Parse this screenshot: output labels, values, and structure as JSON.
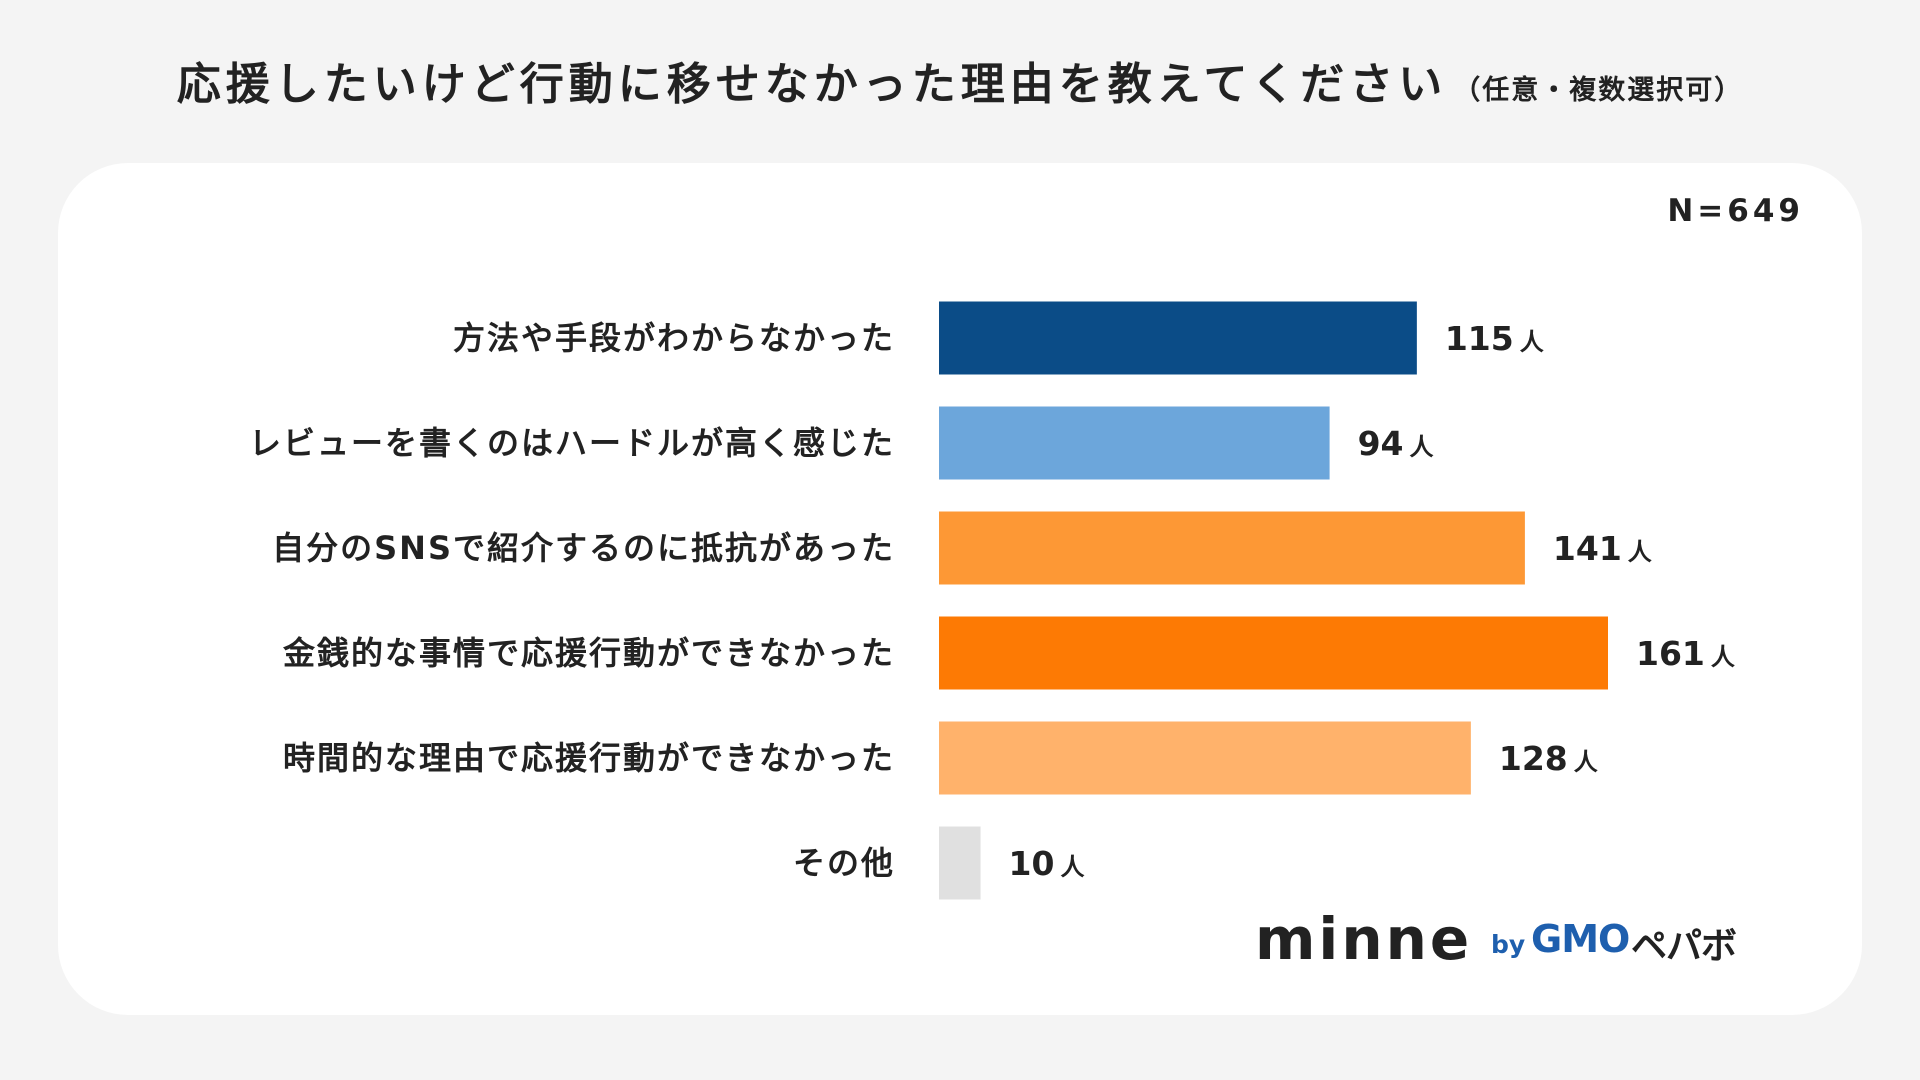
{
  "header": {
    "title": "応援したいけど行動に移せなかった理由を教えてください",
    "subtitle": "（任意・複数選択可）"
  },
  "sample_size": "N=649",
  "logo": {
    "main": "minne",
    "by": "by",
    "company": "GMO",
    "company_suffix": "ペパボ"
  },
  "chart_data": {
    "type": "bar",
    "orientation": "horizontal",
    "title": "応援したいけど行動に移せなかった理由を教えてください（任意・複数選択可）",
    "categories": [
      "方法や手段がわからなかった",
      "レビューを書くのはハードルが高く感じた",
      "自分のSNSで紹介するのに抵抗があった",
      "金銭的な事情で応援行動ができなかった",
      "時間的な理由で応援行動ができなかった",
      "その他"
    ],
    "values": [
      115,
      94,
      141,
      161,
      128,
      10
    ],
    "value_unit": "人",
    "colors": [
      "#0b4c87",
      "#6ca6db",
      "#fd9835",
      "#fd7a04",
      "#ffb26b",
      "#e0e0e0"
    ],
    "xlim": [
      0,
      161
    ],
    "grid": false,
    "legend": "none"
  }
}
